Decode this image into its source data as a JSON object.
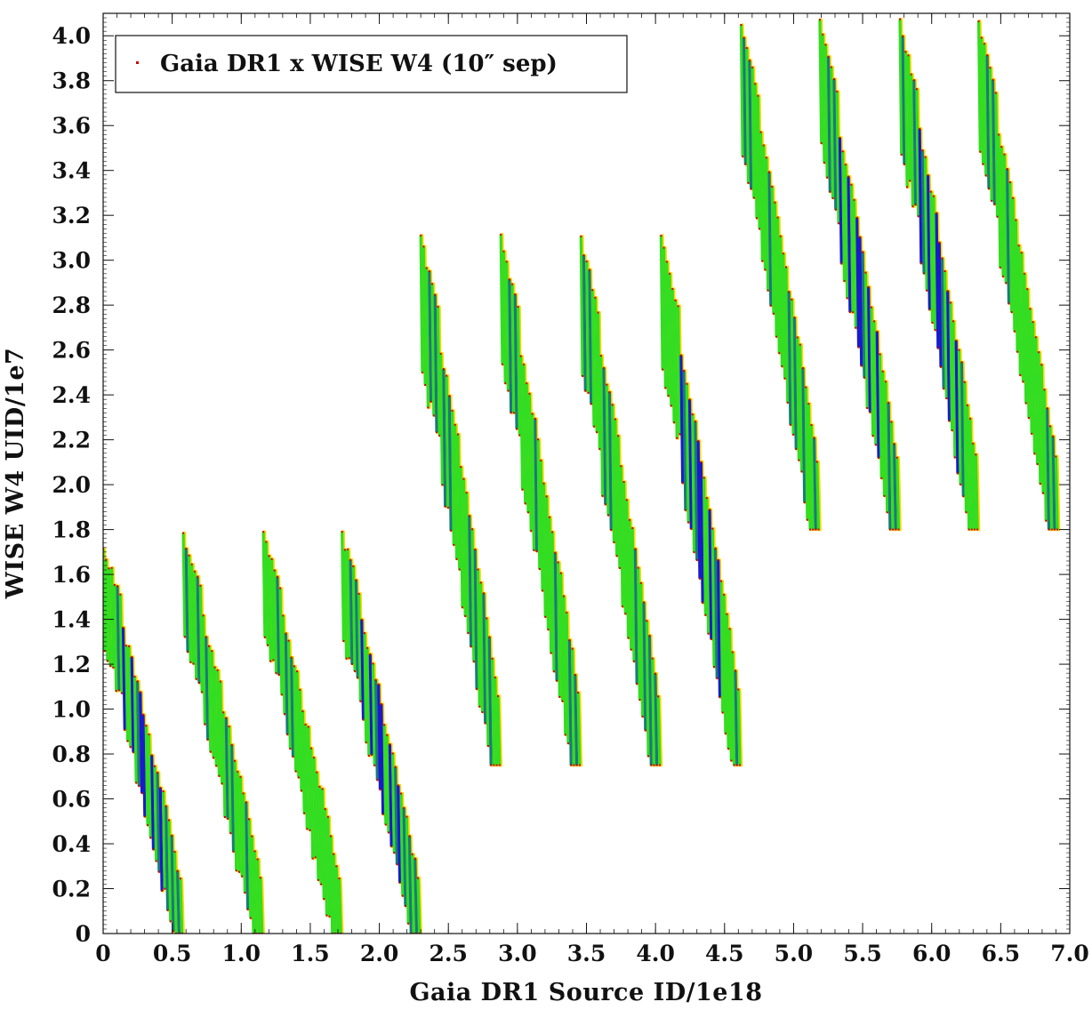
{
  "chart_data": {
    "type": "scatter",
    "xlabel": "Gaia  DR1  Source  ID/1e18",
    "ylabel": "WISE  W4  UID/1e7",
    "xlim": [
      0,
      7.0
    ],
    "ylim": [
      0,
      4.1
    ],
    "xticks": [
      "0",
      "0.5",
      "1.0",
      "1.5",
      "2.0",
      "2.5",
      "3.0",
      "3.5",
      "4.0",
      "4.5",
      "5.0",
      "5.5",
      "6.0",
      "6.5",
      "7.0"
    ],
    "yticks": [
      "0",
      "0.2",
      "0.4",
      "0.6",
      "0.8",
      "1.0",
      "1.2",
      "1.4",
      "1.6",
      "1.8",
      "2.0",
      "2.2",
      "2.4",
      "2.6",
      "2.8",
      "3.0",
      "3.2",
      "3.4",
      "3.6",
      "3.8",
      "4.0"
    ],
    "legend": {
      "label": "Gaia DR1 x WISE W4 (10″ sep)",
      "position": "top-left",
      "marker_color": "#cc0000"
    },
    "colors": {
      "low_density": "#ffd700",
      "mid_density": "#33dd22",
      "high_density": "#1a7a7a",
      "peak_density": "#1a1acc",
      "marker": "#cc0000"
    },
    "grid": false,
    "series": [
      {
        "name": "Gaia DR1 x WISE W4 (10″ sep)",
        "bands": [
          {
            "x_start": 0.0,
            "x_end": 0.58,
            "y_top": 1.75,
            "y_bottom": 0.0
          },
          {
            "x_start": 0.58,
            "x_end": 1.16,
            "y_top": 1.8,
            "y_bottom": 0.0
          },
          {
            "x_start": 1.16,
            "x_end": 1.73,
            "y_top": 1.8,
            "y_bottom": 0.0
          },
          {
            "x_start": 1.73,
            "x_end": 2.3,
            "y_top": 1.8,
            "y_bottom": 0.0
          },
          {
            "x_start": 2.3,
            "x_end": 2.88,
            "y_top": 3.12,
            "y_bottom": 0.75
          },
          {
            "x_start": 2.88,
            "x_end": 3.46,
            "y_top": 3.12,
            "y_bottom": 0.75
          },
          {
            "x_start": 3.46,
            "x_end": 4.04,
            "y_top": 3.12,
            "y_bottom": 0.75
          },
          {
            "x_start": 4.04,
            "x_end": 4.62,
            "y_top": 3.12,
            "y_bottom": 0.75
          },
          {
            "x_start": 4.62,
            "x_end": 5.19,
            "y_top": 4.08,
            "y_bottom": 1.8
          },
          {
            "x_start": 5.19,
            "x_end": 5.77,
            "y_top": 4.08,
            "y_bottom": 1.8
          },
          {
            "x_start": 5.77,
            "x_end": 6.34,
            "y_top": 4.08,
            "y_bottom": 1.8
          },
          {
            "x_start": 6.34,
            "x_end": 6.92,
            "y_top": 4.08,
            "y_bottom": 1.8
          }
        ]
      }
    ]
  }
}
